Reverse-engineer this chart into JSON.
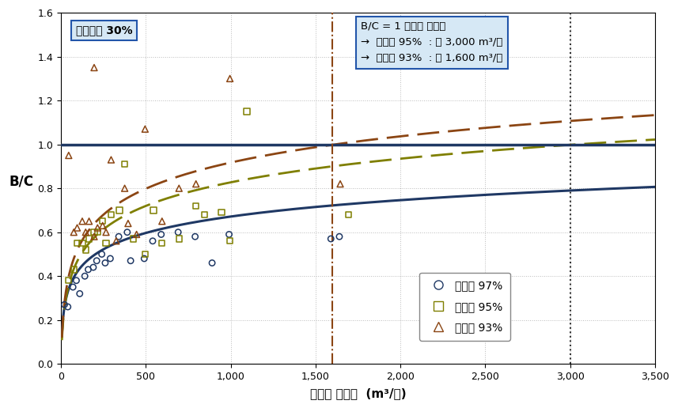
{
  "xlabel": "슬러지 유입량  (m³/일)",
  "ylabel": "B/C",
  "xlim": [
    0,
    3500
  ],
  "ylim": [
    0.0,
    1.6
  ],
  "yticks": [
    0.0,
    0.2,
    0.4,
    0.6,
    0.8,
    1.0,
    1.2,
    1.4,
    1.6
  ],
  "xticks": [
    0,
    500,
    1000,
    1500,
    2000,
    2500,
    3000,
    3500
  ],
  "scatter_97": [
    [
      20,
      0.27
    ],
    [
      40,
      0.26
    ],
    [
      70,
      0.35
    ],
    [
      90,
      0.38
    ],
    [
      110,
      0.32
    ],
    [
      140,
      0.4
    ],
    [
      160,
      0.43
    ],
    [
      190,
      0.44
    ],
    [
      210,
      0.47
    ],
    [
      240,
      0.5
    ],
    [
      260,
      0.46
    ],
    [
      290,
      0.48
    ],
    [
      340,
      0.58
    ],
    [
      390,
      0.6
    ],
    [
      410,
      0.47
    ],
    [
      490,
      0.48
    ],
    [
      540,
      0.56
    ],
    [
      590,
      0.59
    ],
    [
      690,
      0.6
    ],
    [
      790,
      0.58
    ],
    [
      890,
      0.46
    ],
    [
      990,
      0.59
    ],
    [
      1590,
      0.57
    ],
    [
      1640,
      0.58
    ]
  ],
  "scatter_95": [
    [
      45,
      0.38
    ],
    [
      75,
      0.43
    ],
    [
      95,
      0.55
    ],
    [
      125,
      0.55
    ],
    [
      145,
      0.52
    ],
    [
      165,
      0.57
    ],
    [
      195,
      0.6
    ],
    [
      215,
      0.6
    ],
    [
      245,
      0.65
    ],
    [
      265,
      0.55
    ],
    [
      295,
      0.68
    ],
    [
      345,
      0.7
    ],
    [
      375,
      0.91
    ],
    [
      425,
      0.57
    ],
    [
      495,
      0.5
    ],
    [
      545,
      0.7
    ],
    [
      595,
      0.55
    ],
    [
      695,
      0.57
    ],
    [
      795,
      0.72
    ],
    [
      845,
      0.68
    ],
    [
      945,
      0.69
    ],
    [
      995,
      0.56
    ],
    [
      1095,
      1.15
    ],
    [
      1695,
      0.68
    ]
  ],
  "scatter_93": [
    [
      45,
      0.95
    ],
    [
      75,
      0.6
    ],
    [
      95,
      0.62
    ],
    [
      125,
      0.65
    ],
    [
      145,
      0.6
    ],
    [
      165,
      0.65
    ],
    [
      195,
      0.58
    ],
    [
      215,
      0.62
    ],
    [
      245,
      0.63
    ],
    [
      265,
      0.6
    ],
    [
      295,
      0.93
    ],
    [
      325,
      0.56
    ],
    [
      375,
      0.8
    ],
    [
      395,
      0.64
    ],
    [
      445,
      0.59
    ],
    [
      495,
      1.07
    ],
    [
      595,
      0.65
    ],
    [
      695,
      0.8
    ],
    [
      795,
      0.82
    ],
    [
      195,
      1.35
    ],
    [
      995,
      1.3
    ],
    [
      1645,
      0.82
    ]
  ],
  "color_97": "#1F3864",
  "color_95": "#7F7F00",
  "color_93": "#8B4513",
  "hline_y": 1.0,
  "hline_color": "#1F3864",
  "vline_x1": 1600,
  "vline_x2": 3000,
  "vline_color": "#8B4513",
  "vline2_color": "#333333",
  "box1_text": "소화효율 30%",
  "box2_line1": "B/C = 1 슬러지 유입량",
  "box2_line2": "→  함수율 95%  : 약 3,000 m³/일",
  "box2_line3": "→  함수율 93%  : 약 1,600 m³/일",
  "legend_97": "함수율 97%",
  "legend_95": "함수율 95%",
  "legend_93": "함수율 93%",
  "bg_color": "#FFFFFF",
  "grid_color": "#AAAAAA"
}
